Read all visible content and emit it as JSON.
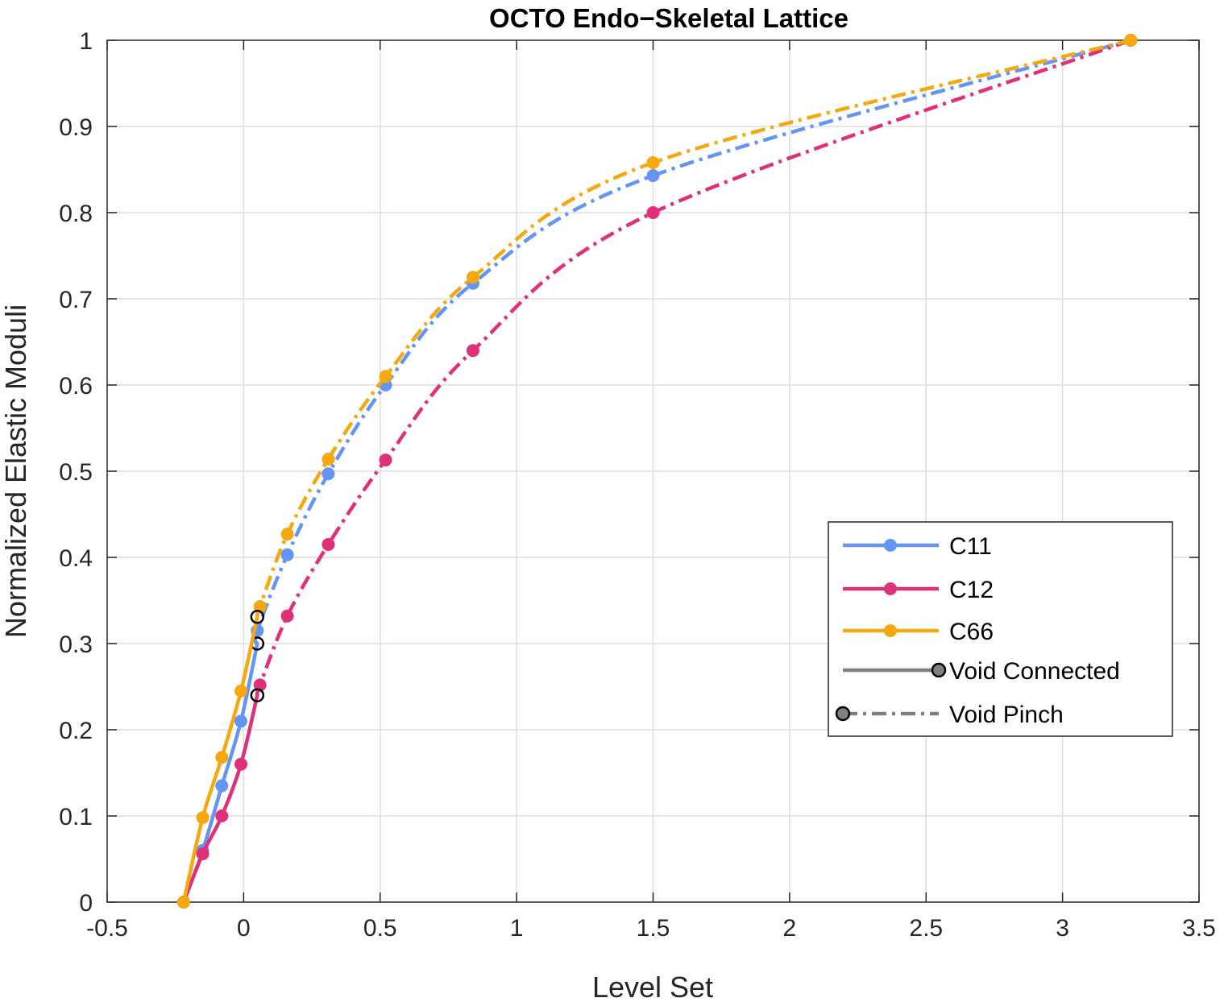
{
  "chart_data": {
    "type": "line",
    "title": "OCTO Endo−Skeletal Lattice",
    "xlabel": "Level Set",
    "ylabel": "Normalized Elastic Moduli",
    "xlim": [
      -0.5,
      3.5
    ],
    "ylim": [
      0,
      1
    ],
    "xticks": [
      -0.5,
      0,
      0.5,
      1,
      1.5,
      2,
      2.5,
      3,
      3.5
    ],
    "xtick_labels": [
      "-0.5",
      "0",
      "0.5",
      "1",
      "1.5",
      "2",
      "2.5",
      "3",
      "3.5"
    ],
    "yticks": [
      0,
      0.1,
      0.2,
      0.3,
      0.4,
      0.5,
      0.6,
      0.7,
      0.8,
      0.9,
      1
    ],
    "ytick_labels": [
      "0",
      "0.1",
      "0.2",
      "0.3",
      "0.4",
      "0.5",
      "0.6",
      "0.7",
      "0.8",
      "0.9",
      "1"
    ],
    "grid": true,
    "legend_position": "lower-right",
    "transition_x": 0.05,
    "series": [
      {
        "name": "C11",
        "color": "#6495f5",
        "points": [
          [
            -0.22,
            0
          ],
          [
            -0.15,
            0.06
          ],
          [
            -0.08,
            0.135
          ],
          [
            -0.01,
            0.21
          ],
          [
            0.05,
            0.315
          ],
          [
            0.16,
            0.403
          ],
          [
            0.31,
            0.497
          ],
          [
            0.52,
            0.6
          ],
          [
            0.84,
            0.718
          ],
          [
            1.5,
            0.843
          ],
          [
            3.25,
            1.0
          ]
        ],
        "transition_y": 0.3
      },
      {
        "name": "C12",
        "color": "#e0307a",
        "points": [
          [
            -0.22,
            0
          ],
          [
            -0.15,
            0.056
          ],
          [
            -0.08,
            0.1
          ],
          [
            -0.01,
            0.16
          ],
          [
            0.06,
            0.252
          ],
          [
            0.16,
            0.332
          ],
          [
            0.31,
            0.415
          ],
          [
            0.52,
            0.513
          ],
          [
            0.84,
            0.64
          ],
          [
            1.5,
            0.8
          ],
          [
            3.25,
            1.0
          ]
        ],
        "transition_y": 0.24
      },
      {
        "name": "C66",
        "color": "#f5a80f",
        "points": [
          [
            -0.22,
            0
          ],
          [
            -0.15,
            0.098
          ],
          [
            -0.08,
            0.168
          ],
          [
            -0.01,
            0.245
          ],
          [
            0.06,
            0.343
          ],
          [
            0.16,
            0.427
          ],
          [
            0.31,
            0.514
          ],
          [
            0.52,
            0.61
          ],
          [
            0.84,
            0.725
          ],
          [
            1.5,
            0.858
          ],
          [
            3.25,
            1.0
          ]
        ],
        "transition_y": 0.331
      }
    ],
    "legend_entries": [
      {
        "label": "C11",
        "color": "#6495f5",
        "style": "solid-marker"
      },
      {
        "label": "C12",
        "color": "#e0307a",
        "style": "solid-marker"
      },
      {
        "label": "C66",
        "color": "#f5a80f",
        "style": "solid-marker"
      },
      {
        "label": "Void Connected",
        "color": "#808080",
        "style": "solid-open-marker-end"
      },
      {
        "label": "Void Pinch",
        "color": "#808080",
        "style": "dashdot-open-marker-start"
      }
    ]
  }
}
